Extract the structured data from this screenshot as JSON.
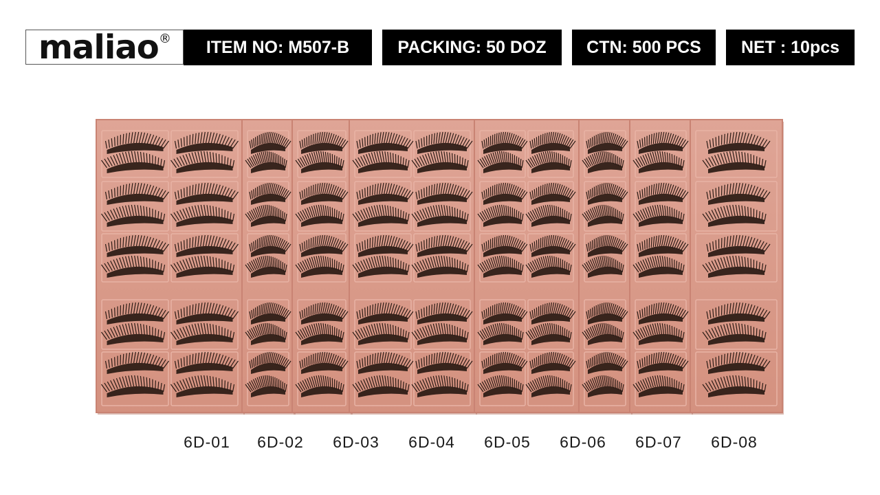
{
  "brand": {
    "logo_text": "maliao",
    "registered_mark": "®"
  },
  "specs": [
    {
      "label": "ITEM NO: M507-B"
    },
    {
      "label": "PACKING: 50 DOZ"
    },
    {
      "label": "CTN: 500 PCS"
    },
    {
      "label": "NET : 10pcs"
    }
  ],
  "styles": [
    {
      "code": "6D-01"
    },
    {
      "code": "6D-02"
    },
    {
      "code": "6D-03"
    },
    {
      "code": "6D-04"
    },
    {
      "code": "6D-05"
    },
    {
      "code": "6D-06"
    },
    {
      "code": "6D-07"
    },
    {
      "code": "6D-08"
    }
  ],
  "colors": {
    "tray": "#d99a8b",
    "tray_edge": "#c98373",
    "tray_shadow": "#b57566",
    "lash": "#2a1a14",
    "spec_bg": "#000000",
    "spec_text": "#ffffff"
  }
}
